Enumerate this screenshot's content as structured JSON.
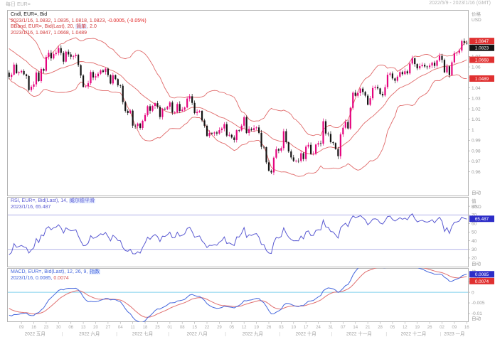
{
  "header": {
    "left": "每日 EUR=",
    "right": "2022/5/9 - 2023/1/16 (GMT)"
  },
  "axis": {
    "price_title": "价格",
    "value_title": "值",
    "unit": "USD",
    "auto": "自动"
  },
  "price_panel": {
    "legend_line1": "Cndl, EUR=, Bid",
    "legend_line2a": "2023/1/16, 1.0832, 1.0835, 1.0818, 1.0823, ",
    "legend_line2b": "-0.0005, (-0.05%)",
    "legend_line3a": "BBand, EUR=, Bid(Last), 20, ",
    "legend_line3b": "简单",
    "legend_line3c": ", 2.0",
    "legend_line4": "2023/1/16, 1.0847, 1.0668, 1.0489"
  },
  "rsi_panel": {
    "legend_line1a": "RSI, EUR=, Bid(Last), 14, ",
    "legend_line1b": "威尔德平滑",
    "legend_line2": "2023/1/16, 65.487"
  },
  "macd_panel": {
    "legend_line1a": "MACD, EUR=, Bid(Last), 12, 26, 9, ",
    "legend_line1b": "指数",
    "legend_line2a": "2023/1/16, 0.0085, ",
    "legend_line2b": "0.0074"
  },
  "colors": {
    "candle_up": "#e5047e",
    "candle_down": "#141414",
    "bollinger": "#e06a6a",
    "rsi_line": "#5a5ad2",
    "rsi_band": "#9a9ae0",
    "macd_line": "#4466dd",
    "macd_signal": "#e07070",
    "zero_line": "#7fd0ee",
    "badge_red": "#e03030",
    "badge_black": "#141414",
    "badge_blue": "#2d2dc8",
    "axis_text": "#9a9a9a",
    "border": "#b3b3b3"
  },
  "chart_data": {
    "type": "candlestick",
    "instrument": "EUR=",
    "field": "Bid",
    "interval": "daily",
    "date_range": "2022/5/9 - 2023/1/16 (GMT)",
    "last_quote": {
      "date": "2023/1/16",
      "open": 1.0832,
      "high": 1.0835,
      "low": 1.0818,
      "close": 1.0823,
      "change": -0.0005,
      "change_pct": "-0.05%"
    },
    "indicators": [
      {
        "name": "BBand",
        "params": "20, 简单, 2.0",
        "upper": 1.0847,
        "middle": 1.0668,
        "lower": 1.0489
      },
      {
        "name": "RSI",
        "params": "14, 威尔德平滑",
        "value": 65.487
      },
      {
        "name": "MACD",
        "params": "12, 26, 9, 指数",
        "macd": 0.0085,
        "signal": 0.0074
      }
    ],
    "warmup_count": 20,
    "closes": [
      1.0986,
      1.0905,
      1.0913,
      1.0925,
      1.0877,
      1.0906,
      1.0885,
      1.0827,
      1.0892,
      1.0828,
      1.0808,
      1.0786,
      1.085,
      1.0838,
      1.0795,
      1.0713,
      1.0644,
      1.0558,
      1.0498,
      1.0545,
      1.0505,
      1.0526,
      1.0622,
      1.054,
      1.0549,
      1.0561,
      1.0529,
      1.0513,
      1.0379,
      1.0411,
      1.0434,
      1.0546,
      1.0465,
      1.058,
      1.0563,
      1.0695,
      1.0734,
      1.0681,
      1.0722,
      1.0733,
      1.0779,
      1.0734,
      1.065,
      1.0745,
      1.0719,
      1.0697,
      1.0703,
      1.0715,
      1.0617,
      1.0518,
      1.0409,
      1.0414,
      1.0444,
      1.0551,
      1.0499,
      1.0511,
      1.0535,
      1.0566,
      1.0553,
      1.0583,
      1.0522,
      1.0442,
      1.0521,
      1.0484,
      1.0425,
      1.042,
      1.0265,
      1.0181,
      1.016,
      1.0183,
      1.004,
      1.0036,
      1.006,
      1.0018,
      1.0086,
      1.0141,
      1.0225,
      1.0182,
      1.0228,
      1.0254,
      1.0219,
      1.0122,
      1.0201,
      1.0196,
      1.0221,
      1.0261,
      1.0164,
      1.0166,
      1.0246,
      1.018,
      1.0193,
      1.0213,
      1.0298,
      1.032,
      1.0257,
      1.016,
      1.0171,
      1.018,
      1.009,
      1.0039,
      0.9942,
      0.997,
      0.9966,
      0.9975,
      0.9965,
      0.9997,
      1.0013,
      1.0054,
      0.9945,
      0.9952,
      0.9927,
      0.9903,
      0.9997,
      0.9995,
      1.004,
      1.012,
      0.997,
      1.0009,
      0.9998,
      1.0016,
      1.0023,
      0.9971,
      0.9838,
      0.9835,
      0.969,
      0.961,
      0.9594,
      0.9735,
      0.9815,
      0.9802,
      0.9826,
      0.9987,
      0.9882,
      0.9794,
      0.9737,
      0.9704,
      0.9706,
      0.9704,
      0.9777,
      0.9721,
      0.984,
      0.9857,
      0.977,
      0.9772,
      0.986,
      0.9873,
      0.9868,
      1.0082,
      0.9965,
      0.9961,
      0.9883,
      0.9874,
      0.9816,
      0.9749,
      0.9957,
      1.002,
      1.0075,
      1.0013,
      1.021,
      1.0354,
      1.0325,
      1.035,
      1.0393,
      1.0361,
      1.0326,
      1.0239,
      1.0301,
      1.0399,
      1.0409,
      1.0395,
      1.0343,
      1.0328,
      1.0407,
      1.0525,
      1.0537,
      1.049,
      1.0468,
      1.0507,
      1.0551,
      1.0531,
      1.0558,
      1.0538,
      1.0632,
      1.0683,
      1.0627,
      1.0586,
      1.0607,
      1.062,
      1.0604,
      1.0598,
      1.0613,
      1.064,
      1.061,
      1.0661,
      1.0705,
      1.0667,
      1.0548,
      1.0605,
      1.0522,
      1.0644,
      1.073,
      1.0734,
      1.0756,
      1.0846,
      1.083,
      1.0823
    ],
    "panels": {
      "price": {
        "ymin": 0.9374,
        "ymax": 1.1136,
        "ticks": [
          {
            "v": 1.08,
            "t": "1.08"
          },
          {
            "v": 1.07,
            "t": "1.07"
          },
          {
            "v": 1.06,
            "t": "1.06"
          },
          {
            "v": 1.05,
            "t": "1.05"
          },
          {
            "v": 1.04,
            "t": "1.04"
          },
          {
            "v": 1.03,
            "t": "1.03"
          },
          {
            "v": 1.02,
            "t": "1.02"
          },
          {
            "v": 1.01,
            "t": "1.01"
          },
          {
            "v": 1.0,
            "t": "1"
          },
          {
            "v": 0.99,
            "t": "0.99"
          },
          {
            "v": 0.98,
            "t": "0.98"
          },
          {
            "v": 0.97,
            "t": "0.97"
          },
          {
            "v": 0.96,
            "t": "0.96"
          }
        ],
        "badges": [
          {
            "v": 1.0847,
            "t": "1.0847",
            "c": "red"
          },
          {
            "v": 1.0823,
            "t": "1.0823",
            "c": "black"
          },
          {
            "v": 1.0668,
            "t": "1.0668",
            "c": "red"
          },
          {
            "v": 1.0489,
            "t": "1.0489",
            "c": "red"
          }
        ]
      },
      "rsi": {
        "ymin": 10,
        "ymax": 90,
        "hlines": [
          70,
          30
        ],
        "ticks": [
          {
            "v": 80,
            "t": "80"
          },
          {
            "v": 70,
            "t": "70"
          },
          {
            "v": 60,
            "t": "60"
          },
          {
            "v": 50,
            "t": "50"
          },
          {
            "v": 40,
            "t": "40"
          },
          {
            "v": 30,
            "t": "30"
          },
          {
            "v": 20,
            "t": "20"
          }
        ],
        "badges": [
          {
            "v": 65.487,
            "t": "65.487",
            "c": "blue"
          }
        ]
      },
      "macd": {
        "ymin": -0.0137,
        "ymax": 0.0111,
        "hlines": [
          0
        ],
        "ticks": [
          {
            "v": 0.005,
            "t": "0.005"
          },
          {
            "v": 0,
            "t": "0"
          },
          {
            "v": -0.005,
            "t": "-0.005"
          },
          {
            "v": -0.01,
            "t": "-0.01"
          }
        ],
        "badges": [
          {
            "v": 0.0085,
            "t": "0.0085",
            "c": "blue"
          },
          {
            "v": 0.0074,
            "t": "0.0074",
            "c": "red"
          }
        ]
      }
    },
    "x_axis": {
      "month_labels": [
        {
          "label": "2022 五月",
          "start": 0,
          "end": 21
        },
        {
          "label": "2022 六月",
          "start": 22,
          "end": 43
        },
        {
          "label": "2022 七月",
          "start": 44,
          "end": 64
        },
        {
          "label": "2022 八月",
          "start": 65,
          "end": 87
        },
        {
          "label": "2022 九月",
          "start": 88,
          "end": 109
        },
        {
          "label": "2022 十月",
          "start": 110,
          "end": 130
        },
        {
          "label": "2022 十一月",
          "start": 131,
          "end": 152
        },
        {
          "label": "2022 十二月",
          "start": 153,
          "end": 174
        },
        {
          "label": "2023 一月",
          "start": 175,
          "end": 185
        }
      ],
      "day_ticks": [
        {
          "i": 5,
          "t": "09"
        },
        {
          "i": 10,
          "t": "16"
        },
        {
          "i": 15,
          "t": "23"
        },
        {
          "i": 20,
          "t": "30"
        },
        {
          "i": 25,
          "t": "06"
        },
        {
          "i": 30,
          "t": "13"
        },
        {
          "i": 35,
          "t": "20"
        },
        {
          "i": 40,
          "t": "27"
        },
        {
          "i": 45,
          "t": "04"
        },
        {
          "i": 50,
          "t": "11"
        },
        {
          "i": 55,
          "t": "18"
        },
        {
          "i": 60,
          "t": "25"
        },
        {
          "i": 65,
          "t": "01"
        },
        {
          "i": 70,
          "t": "08"
        },
        {
          "i": 75,
          "t": "15"
        },
        {
          "i": 80,
          "t": "22"
        },
        {
          "i": 85,
          "t": "29"
        },
        {
          "i": 90,
          "t": "05"
        },
        {
          "i": 95,
          "t": "12"
        },
        {
          "i": 100,
          "t": "19"
        },
        {
          "i": 105,
          "t": "26"
        },
        {
          "i": 110,
          "t": "03"
        },
        {
          "i": 115,
          "t": "10"
        },
        {
          "i": 120,
          "t": "17"
        },
        {
          "i": 125,
          "t": "24"
        },
        {
          "i": 130,
          "t": "31"
        },
        {
          "i": 135,
          "t": "07"
        },
        {
          "i": 140,
          "t": "14"
        },
        {
          "i": 145,
          "t": "21"
        },
        {
          "i": 150,
          "t": "28"
        },
        {
          "i": 155,
          "t": "05"
        },
        {
          "i": 160,
          "t": "12"
        },
        {
          "i": 165,
          "t": "19"
        },
        {
          "i": 170,
          "t": "26"
        },
        {
          "i": 175,
          "t": "02"
        },
        {
          "i": 180,
          "t": "09"
        },
        {
          "i": 185,
          "t": "16"
        }
      ]
    }
  }
}
